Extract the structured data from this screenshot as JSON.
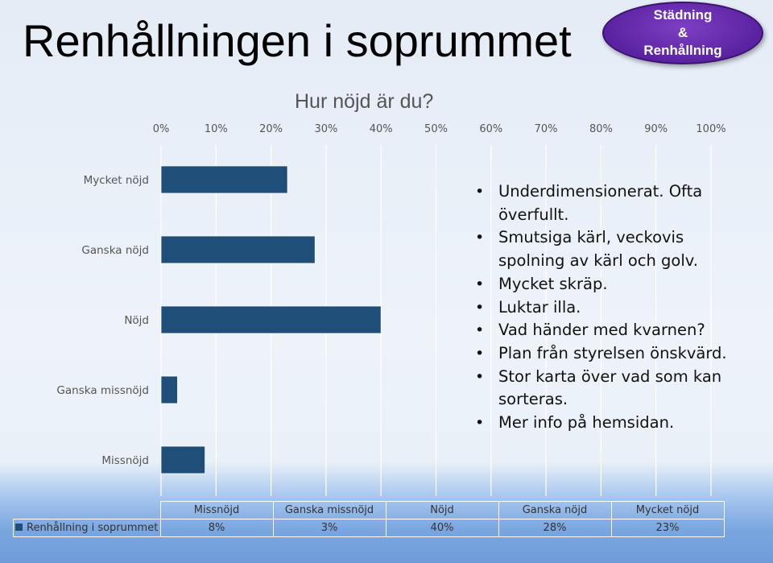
{
  "slide_title": "Renhållningen i soprummet",
  "badge": {
    "line1": "Städning",
    "line2": "&",
    "line3": "Renhållning"
  },
  "chart_data": {
    "type": "bar",
    "orientation": "horizontal",
    "title": "Hur nöjd är du?",
    "categories": [
      "Mycket nöjd",
      "Ganska nöjd",
      "Nöjd",
      "Ganska missnöjd",
      "Missnöjd"
    ],
    "series": [
      {
        "name": "Renhållning i soprummet",
        "values": [
          23,
          28,
          40,
          3,
          8
        ]
      }
    ],
    "xlim": [
      0,
      100
    ],
    "x_ticks": [
      "0%",
      "10%",
      "20%",
      "30%",
      "40%",
      "50%",
      "60%",
      "70%",
      "80%",
      "90%",
      "100%"
    ],
    "grid": true,
    "color": "#1f4e79",
    "data_table": {
      "headers": [
        "Missnöjd",
        "Ganska missnöjd",
        "Nöjd",
        "Ganska nöjd",
        "Mycket nöjd"
      ],
      "row_label": "Renhållning i soprummet",
      "values": [
        "8%",
        "3%",
        "40%",
        "28%",
        "23%"
      ]
    }
  },
  "comments": [
    "Underdimensionerat. Ofta överfullt.",
    "Smutsiga kärl, veckovis spolning av kärl och golv.",
    "Mycket skräp.",
    "Luktar illa.",
    "Vad händer med kvarnen?",
    "Plan från styrelsen önskvärd.",
    "Stor karta över vad som kan sorteras.",
    "Mer info på hemsidan."
  ]
}
